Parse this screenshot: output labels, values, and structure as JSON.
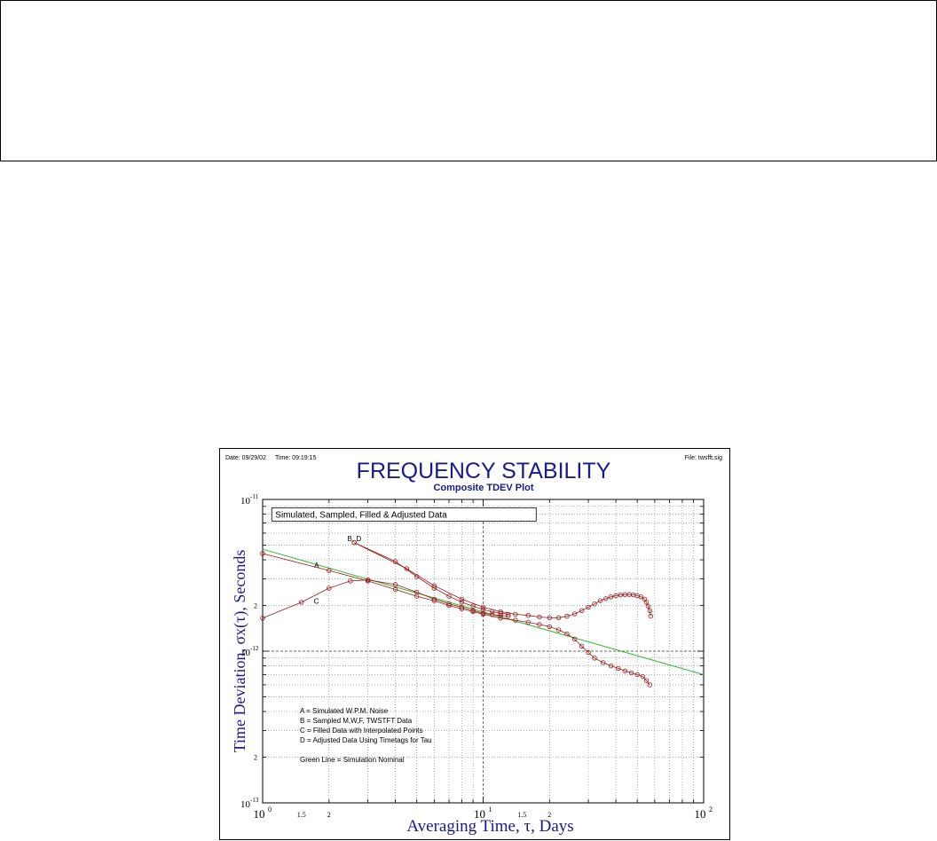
{
  "header": {
    "date_label": "Date: 09/29/02",
    "time_label": "Time: 09:19:15",
    "file_label": "File: twsfft.sig"
  },
  "chart_data": {
    "type": "scatter",
    "title": "FREQUENCY STABILITY",
    "subtitle": "Composite TDEV Plot",
    "annotation_box": "Simulated, Sampled, Filled & Adjusted Data",
    "xlabel": "Averaging Time, τ, Days",
    "ylabel": "Time Deviation, σx(τ), Seconds",
    "x_scale": "log",
    "y_scale": "log",
    "xlim": [
      1,
      100
    ],
    "ylim": [
      1e-13,
      1e-11
    ],
    "grid": true,
    "x_ticks": [
      {
        "value": 1,
        "base": "10",
        "exp": "0"
      },
      {
        "value": 1.5,
        "label": "1.5"
      },
      {
        "value": 2,
        "label": "2"
      },
      {
        "value": 10,
        "base": "10",
        "exp": "1"
      },
      {
        "value": 15,
        "label": "1.5"
      },
      {
        "value": 20,
        "label": "2"
      },
      {
        "value": 100,
        "base": "10",
        "exp": "2"
      }
    ],
    "y_ticks": [
      {
        "value": 1e-13,
        "base": "10",
        "exp": "-13"
      },
      {
        "value": 2e-13,
        "label": "2"
      },
      {
        "value": 1e-12,
        "base": "10",
        "exp": "-12"
      },
      {
        "value": 2e-12,
        "label": "2"
      },
      {
        "value": 1e-11,
        "base": "10",
        "exp": "-11"
      }
    ],
    "curve_labels": [
      {
        "text": "B, D",
        "x": 2.8,
        "y": 5.3e-12
      },
      {
        "text": "A",
        "x": 1.8,
        "y": 3.55e-12
      },
      {
        "text": "C",
        "x": 1.8,
        "y": 2.05e-12
      }
    ],
    "legend_lines": [
      "A = Simulated W.P.M. Noise",
      "B = Sampled M,W,F, TWSTFT Data",
      "C = Filled Data with Interpolated Points",
      "D = Adjusted Data Using Timetags for Tau"
    ],
    "legend_note": "Green Line = Simulation Nominal",
    "series": [
      {
        "name": "A",
        "points": [
          [
            1,
            4.4e-12
          ],
          [
            2,
            3.4e-12
          ],
          [
            3,
            2.9e-12
          ],
          [
            4,
            2.55e-12
          ],
          [
            5,
            2.3e-12
          ],
          [
            6,
            2.15e-12
          ],
          [
            7,
            2e-12
          ],
          [
            8,
            1.9e-12
          ],
          [
            9,
            1.82e-12
          ],
          [
            10,
            1.75e-12
          ],
          [
            12,
            1.65e-12
          ],
          [
            14,
            1.6e-12
          ],
          [
            16,
            1.55e-12
          ],
          [
            18,
            1.5e-12
          ],
          [
            20,
            1.45e-12
          ],
          [
            22,
            1.38e-12
          ],
          [
            24,
            1.3e-12
          ],
          [
            26,
            1.2e-12
          ],
          [
            28,
            1.08e-12
          ],
          [
            30,
            9.8e-13
          ],
          [
            32,
            9e-13
          ],
          [
            35,
            8.4e-13
          ],
          [
            38,
            8e-13
          ],
          [
            41,
            7.7e-13
          ],
          [
            44,
            7.4e-13
          ],
          [
            47,
            7.2e-13
          ],
          [
            50,
            7e-13
          ],
          [
            53,
            6.8e-13
          ],
          [
            55,
            6.4e-13
          ],
          [
            57,
            6e-13
          ]
        ]
      },
      {
        "name": "B",
        "points": [
          [
            2.6,
            5.2e-12
          ],
          [
            4.5,
            3.5e-12
          ],
          [
            6,
            2.7e-12
          ],
          [
            8,
            2.2e-12
          ],
          [
            10,
            1.95e-12
          ],
          [
            12,
            1.82e-12
          ],
          [
            14,
            1.75e-12
          ],
          [
            16,
            1.72e-12
          ],
          [
            18,
            1.68e-12
          ],
          [
            20,
            1.66e-12
          ],
          [
            22,
            1.66e-12
          ],
          [
            24,
            1.7e-12
          ],
          [
            26,
            1.76e-12
          ],
          [
            28,
            1.85e-12
          ],
          [
            30,
            1.95e-12
          ],
          [
            32,
            2.05e-12
          ],
          [
            34,
            2.15e-12
          ],
          [
            36,
            2.22e-12
          ],
          [
            38,
            2.28e-12
          ],
          [
            40,
            2.32e-12
          ],
          [
            42,
            2.35e-12
          ],
          [
            44,
            2.36e-12
          ],
          [
            46,
            2.36e-12
          ],
          [
            48,
            2.35e-12
          ],
          [
            50,
            2.32e-12
          ],
          [
            52,
            2.28e-12
          ],
          [
            54,
            2.2e-12
          ],
          [
            55,
            2.1e-12
          ],
          [
            56,
            1.98e-12
          ],
          [
            57,
            1.85e-12
          ],
          [
            57.5,
            1.7e-12
          ]
        ]
      },
      {
        "name": "C",
        "points": [
          [
            1,
            1.65e-12
          ],
          [
            1.5,
            2.1e-12
          ],
          [
            2,
            2.6e-12
          ],
          [
            2.5,
            2.9e-12
          ],
          [
            3,
            2.95e-12
          ],
          [
            4,
            2.75e-12
          ],
          [
            5,
            2.45e-12
          ],
          [
            6,
            2.2e-12
          ],
          [
            7,
            2.05e-12
          ],
          [
            8,
            1.95e-12
          ],
          [
            9,
            1.85e-12
          ],
          [
            10,
            1.78e-12
          ],
          [
            11,
            1.74e-12
          ],
          [
            12,
            1.72e-12
          ],
          [
            13,
            1.7e-12
          ]
        ]
      },
      {
        "name": "D",
        "points": [
          [
            2.6,
            5.2e-12
          ],
          [
            4,
            3.9e-12
          ],
          [
            5,
            3.1e-12
          ],
          [
            6,
            2.6e-12
          ],
          [
            7,
            2.3e-12
          ],
          [
            8,
            2.1e-12
          ],
          [
            9,
            1.98e-12
          ],
          [
            10,
            1.88e-12
          ],
          [
            11,
            1.82e-12
          ],
          [
            12,
            1.78e-12
          ],
          [
            13,
            1.75e-12
          ]
        ]
      },
      {
        "name": "Nominal",
        "color": "#2fb82f",
        "points": [
          [
            1,
            4.7e-12
          ],
          [
            100,
            7e-13
          ]
        ]
      }
    ]
  },
  "colors": {
    "title": "#1a1a8c",
    "axis_label": "#1a1a8c",
    "marker": "#9a1a1a",
    "nominal_line": "#2fb82f"
  }
}
